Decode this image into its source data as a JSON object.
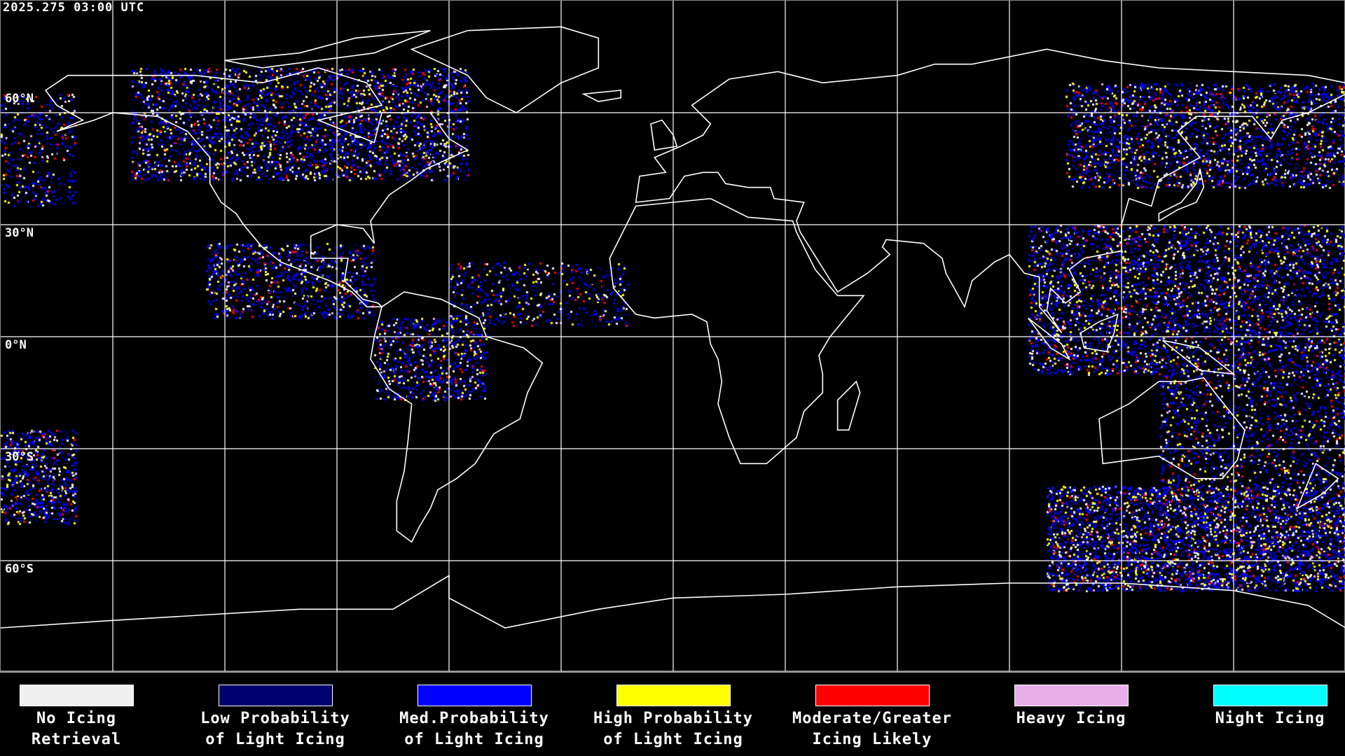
{
  "header": {
    "title": "2025.275 03:00 UTC"
  },
  "map": {
    "projection": "equirectangular",
    "grid_spacing_deg": 30,
    "lat_labels": [
      "60°N",
      "30°N",
      "0°N",
      "30°S",
      "60°S"
    ],
    "background": "#000000",
    "coastline_color": "#ffffff",
    "grid_color": "#ffffff"
  },
  "legend": {
    "items": [
      {
        "line1": "No Icing",
        "line2": "Retrieval",
        "color": "#f0f0f0"
      },
      {
        "line1": "Low Probability",
        "line2": "of Light Icing",
        "color": "#000070"
      },
      {
        "line1": "Med.Probability",
        "line2": "of Light Icing",
        "color": "#0000ff"
      },
      {
        "line1": "High Probability",
        "line2": "of Light Icing",
        "color": "#ffff00"
      },
      {
        "line1": "Moderate/Greater",
        "line2": "Icing Likely",
        "color": "#ff0000"
      },
      {
        "line1": "Heavy Icing",
        "line2": "",
        "color": "#e8aee8"
      },
      {
        "line1": "Night Icing",
        "line2": "",
        "color": "#00ffff"
      }
    ]
  }
}
